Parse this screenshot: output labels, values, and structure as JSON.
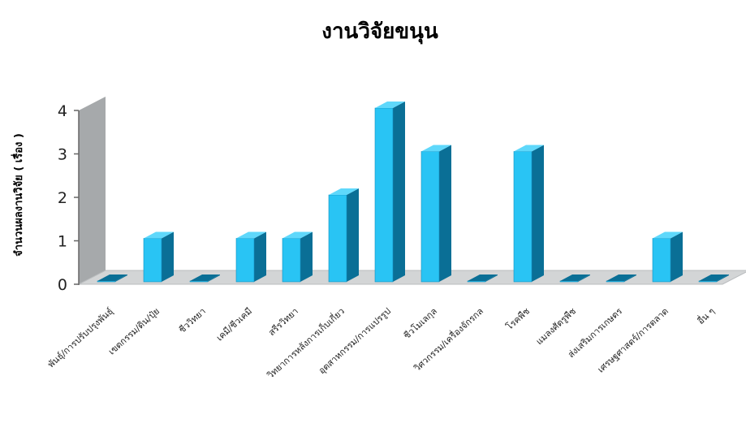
{
  "chart_data": {
    "type": "bar",
    "title": "งานวิจัยขนุน",
    "ylabel": "จำนวนผลงานวิจัย ( เรื่อง )",
    "xlabel": "",
    "ylim": [
      0,
      4
    ],
    "yticks": [
      0,
      1,
      2,
      3,
      4
    ],
    "grid": false,
    "style": "3d-column",
    "colors": {
      "bar_front": "#29c4f4",
      "bar_top": "#5fd8fb",
      "bar_side": "#0a6f96",
      "wall": "#a6a9ab",
      "floor": "#d3d5d6"
    },
    "categories": [
      "พันธุ์/การปรับปรุงพันธุ์",
      "เขตกรรม/ดิน/ปุ๋ย",
      "ชีววิทยา",
      "เคมี/ชีวเคมี",
      "สรีรวิทยา",
      "วิทยาการหลังการเก็บเกี่ยว",
      "อุตสาหกรรม/การแปรรูป",
      "ชีวโมเลกุล",
      "วิศวกรรม/เครื่องจักรกล",
      "โรคพืช",
      "แมลงศัตรูพืช",
      "ส่งเสริมการเกษตร",
      "เศรษฐศาสตร์/การตลาด",
      "อื่น ๆ"
    ],
    "values": [
      0,
      1,
      0,
      1,
      1,
      2,
      4,
      3,
      0,
      3,
      0,
      0,
      1,
      0
    ]
  }
}
